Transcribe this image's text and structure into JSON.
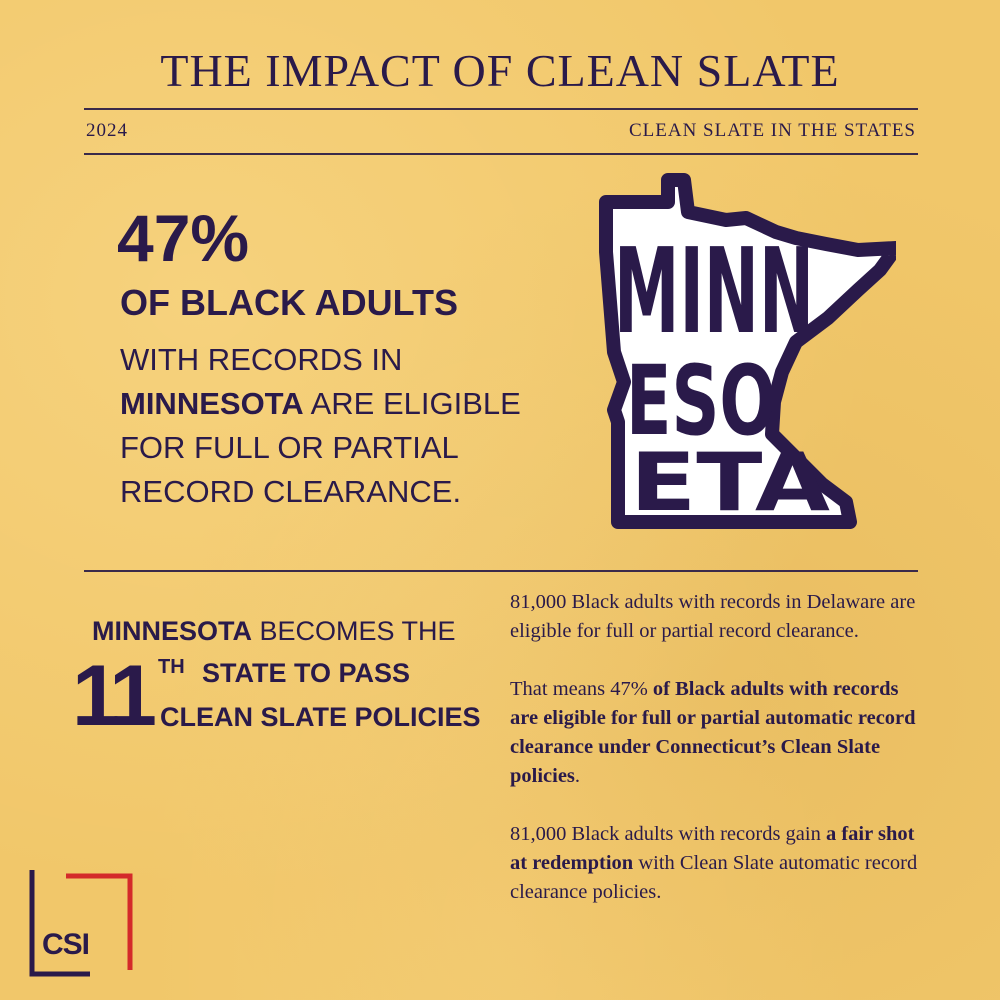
{
  "header": {
    "title": "THE IMPACT OF CLEAN SLATE",
    "year": "2024",
    "subtitle": "CLEAN SLATE IN THE STATES"
  },
  "stat": {
    "percent": "47%",
    "group": "OF BLACK ADULTS",
    "line1": "WITH RECORDS IN",
    "state": "MINNESOTA",
    "line2_rest": " ARE ELIGIBLE",
    "line3": "FOR FULL OR PARTIAL",
    "line4": "RECORD CLEARANCE."
  },
  "map": {
    "letters_row1": "MINN",
    "letters_row2": "ESO",
    "letters_row3": "ETA",
    "colors": {
      "fill": "#ffffff",
      "outline": "#2a1a4a"
    }
  },
  "policy": {
    "state": "MINNESOTA",
    "line1_rest": " BECOMES THE",
    "ordinal_number": "11",
    "ordinal_suffix": "TH",
    "line2": "STATE TO PASS",
    "line3": "CLEAN SLATE POLICIES"
  },
  "details": {
    "p1": "81,000 Black adults with records in Delaware are eligible for full or partial record clearance.",
    "p2_prefix": "That means 47% ",
    "p2_bold": "of Black adults with records are eligible for full or partial automatic record clearance under Connecticut’s Clean Slate policies",
    "p2_suffix": ".",
    "p3_prefix": "81,000 Black adults with records gain ",
    "p3_bold": "a fair shot at redemption",
    "p3_suffix": " with Clean Slate automatic record clearance policies."
  },
  "logo": {
    "text": "CSI",
    "colors": {
      "bracket_dark": "#2a1a4a",
      "bracket_red": "#d42a2a"
    }
  },
  "colors": {
    "background": "#f1c76a",
    "ink": "#2a1a4a"
  }
}
